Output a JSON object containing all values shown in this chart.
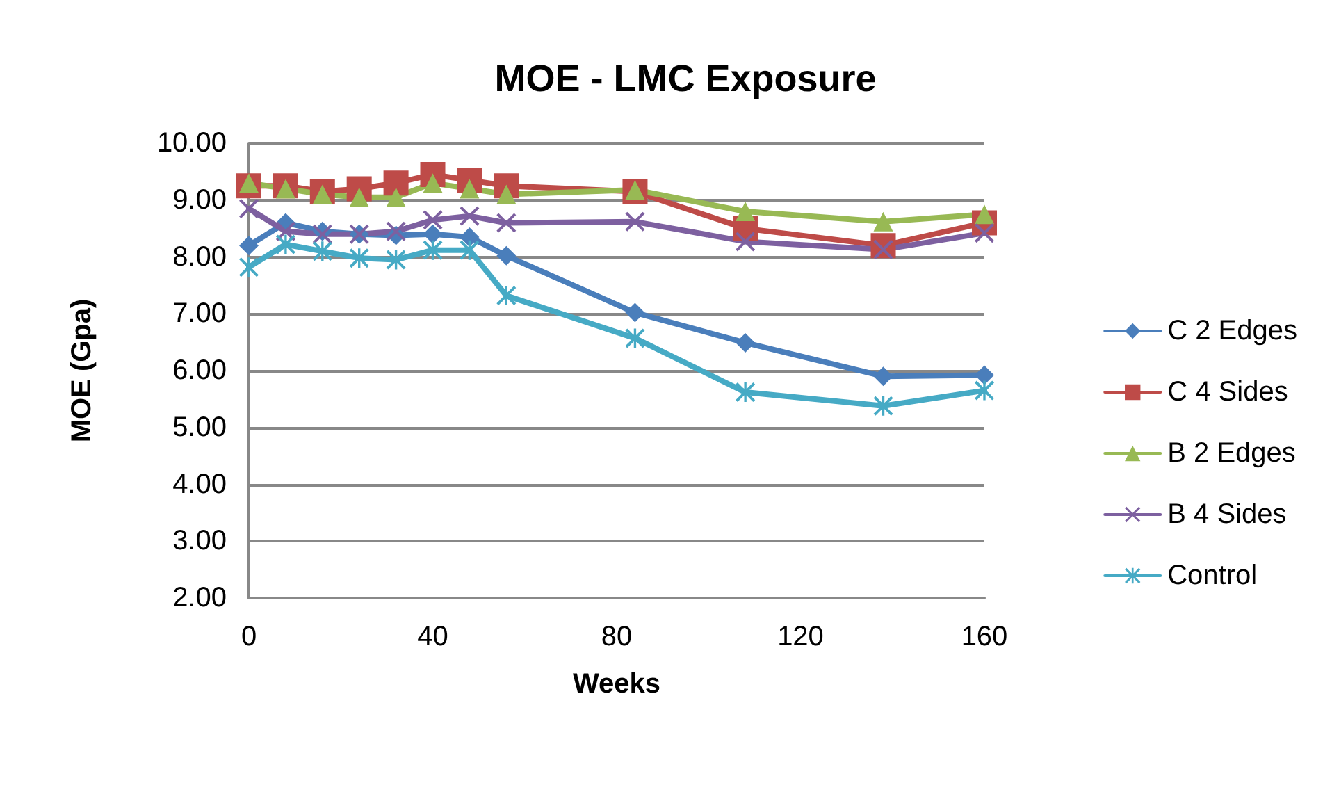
{
  "chart_data": {
    "type": "line",
    "title": "MOE - LMC Exposure",
    "xlabel": "Weeks",
    "ylabel": "MOE (Gpa)",
    "x": [
      0,
      8,
      16,
      24,
      32,
      40,
      48,
      56,
      84,
      108,
      138,
      160
    ],
    "xlim": [
      0,
      160
    ],
    "xticks": [
      0,
      40,
      80,
      120,
      160
    ],
    "ylim": [
      2,
      10
    ],
    "yticks": [
      {
        "value": 2,
        "label": "2.00"
      },
      {
        "value": 3,
        "label": "3.00"
      },
      {
        "value": 4,
        "label": "4.00"
      },
      {
        "value": 5,
        "label": "5.00"
      },
      {
        "value": 6,
        "label": "6.00"
      },
      {
        "value": 7,
        "label": "7.00"
      },
      {
        "value": 8,
        "label": "8.00"
      },
      {
        "value": 9,
        "label": "9.00"
      },
      {
        "value": 10,
        "label": "10.00"
      }
    ],
    "grid": "y",
    "legend": "right",
    "line_style": "solid",
    "series": [
      {
        "name": "C 2 Edges",
        "color": "#4a7ebb",
        "marker": "diamond",
        "values": [
          8.2,
          8.6,
          8.45,
          8.4,
          8.38,
          8.4,
          8.35,
          8.02,
          7.02,
          6.49,
          5.9,
          5.92
        ]
      },
      {
        "name": "C 4 Sides",
        "color": "#be4b48",
        "marker": "square",
        "values": [
          9.25,
          9.25,
          9.15,
          9.2,
          9.3,
          9.45,
          9.35,
          9.25,
          9.15,
          8.5,
          8.2,
          8.6
        ]
      },
      {
        "name": "B 2 Edges",
        "color": "#98b954",
        "marker": "triangle",
        "values": [
          9.3,
          9.2,
          9.1,
          9.05,
          9.05,
          9.3,
          9.2,
          9.1,
          9.18,
          8.8,
          8.62,
          8.75
        ]
      },
      {
        "name": "B 4 Sides",
        "color": "#7d60a0",
        "marker": "cross",
        "values": [
          8.85,
          8.45,
          8.4,
          8.4,
          8.45,
          8.65,
          8.72,
          8.6,
          8.62,
          8.27,
          8.13,
          8.42
        ]
      },
      {
        "name": "Control",
        "color": "#46aac5",
        "marker": "star",
        "values": [
          7.82,
          8.22,
          8.1,
          7.98,
          7.95,
          8.12,
          8.12,
          7.32,
          6.57,
          5.62,
          5.38,
          5.65
        ]
      }
    ]
  }
}
